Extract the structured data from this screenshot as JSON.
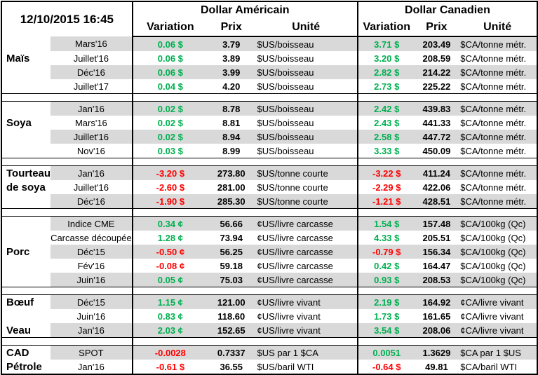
{
  "header": {
    "date": "12/10/2015 16:45",
    "us_title": "Dollar Américain",
    "ca_title": "Dollar Canadien",
    "col_variation": "Variation",
    "col_prix": "Prix",
    "col_unite": "Unité"
  },
  "colors": {
    "positive": "#00b050",
    "negative": "#ff0000",
    "shade": "#d9d9d9"
  },
  "groups": [
    {
      "label": "Maïs",
      "label_row": 1,
      "rows": [
        [
          "Mars'16",
          "0.06 $",
          "3.79",
          "$US/boisseau",
          "3.71 $",
          "203.49",
          "$CA/tonne métr."
        ],
        [
          "Juillet'16",
          "0.06 $",
          "3.89",
          "$US/boisseau",
          "3.20 $",
          "208.59",
          "$CA/tonne métr."
        ],
        [
          "Déc'16",
          "0.06 $",
          "3.99",
          "$US/boisseau",
          "2.82 $",
          "214.22",
          "$CA/tonne métr."
        ],
        [
          "Juillet'17",
          "0.04 $",
          "4.20",
          "$US/boisseau",
          "2.73 $",
          "225.22",
          "$CA/tonne métr."
        ]
      ]
    },
    {
      "label": "Soya",
      "label_row": 1,
      "rows": [
        [
          "Jan'16",
          "0.02 $",
          "8.78",
          "$US/boisseau",
          "2.42 $",
          "439.83",
          "$CA/tonne métr."
        ],
        [
          "Mars'16",
          "0.02 $",
          "8.81",
          "$US/boisseau",
          "2.43 $",
          "441.33",
          "$CA/tonne métr."
        ],
        [
          "Juillet'16",
          "0.02 $",
          "8.94",
          "$US/boisseau",
          "2.58 $",
          "447.72",
          "$CA/tonne métr."
        ],
        [
          "Nov'16",
          "0.03 $",
          "8.99",
          "$US/boisseau",
          "3.33 $",
          "450.09",
          "$CA/tonne métr."
        ]
      ]
    },
    {
      "label": "Tourteau",
      "label2": "de soya",
      "label_row": 0,
      "rows": [
        [
          "Jan'16",
          "-3.20 $",
          "273.80",
          "$US/tonne courte",
          "-3.22 $",
          "411.24",
          "$CA/tonne métr."
        ],
        [
          "Juillet'16",
          "-2.60 $",
          "281.00",
          "$US/tonne courte",
          "-2.29 $",
          "422.06",
          "$CA/tonne métr."
        ],
        [
          "Déc'16",
          "-1.90 $",
          "285.30",
          "$US/tonne courte",
          "-1.21 $",
          "428.51",
          "$CA/tonne métr."
        ]
      ]
    },
    {
      "label": "Porc",
      "label_row": 2,
      "rows": [
        [
          "Indice CME",
          "0.34 ¢",
          "56.66",
          "¢US/livre carcasse",
          "1.54 $",
          "157.48",
          "$CA/100kg (Qc)"
        ],
        [
          "Carcasse découpée",
          "1.28 ¢",
          "73.94",
          "¢US/livre carcasse",
          "4.33 $",
          "205.51",
          "$CA/100kg (Qc)"
        ],
        [
          "Déc'15",
          "-0.50 ¢",
          "56.25",
          "¢US/livre carcasse",
          "-0.79 $",
          "156.34",
          "$CA/100kg (Qc)"
        ],
        [
          "Fév'16",
          "-0.08 ¢",
          "59.18",
          "¢US/livre carcasse",
          "0.42 $",
          "164.47",
          "$CA/100kg (Qc)"
        ],
        [
          "Juin'16",
          "0.05 ¢",
          "75.03",
          "¢US/livre carcasse",
          "0.93 $",
          "208.53",
          "$CA/100kg (Qc)"
        ]
      ]
    },
    {
      "label": "Bœuf",
      "label_row": 0,
      "label_b": "Veau",
      "label_b_row": 2,
      "rows": [
        [
          "Déc'15",
          "1.15 ¢",
          "121.00",
          "¢US/livre vivant",
          "2.19 $",
          "164.92",
          "¢CA/livre vivant"
        ],
        [
          "Juin'16",
          "0.83 ¢",
          "118.60",
          "¢US/livre vivant",
          "1.73 $",
          "161.65",
          "¢CA/livre vivant"
        ],
        [
          "Jan'16",
          "2.03 ¢",
          "152.65",
          "¢US/livre vivant",
          "3.54 $",
          "208.06",
          "¢CA/livre vivant"
        ]
      ]
    },
    {
      "label": "CAD",
      "label_row": 0,
      "label_b": "Pétrole",
      "label_b_row": 1,
      "rows": [
        [
          "SPOT",
          "-0.0028",
          "0.7337",
          "$US par 1 $CA",
          "0.0051",
          "1.3629",
          "$CA par 1 $US"
        ],
        [
          "Jan'16",
          "-0.61 $",
          "36.55",
          "$US/baril WTI",
          "-0.64 $",
          "49.81",
          "$CA/baril WTI"
        ]
      ]
    }
  ]
}
